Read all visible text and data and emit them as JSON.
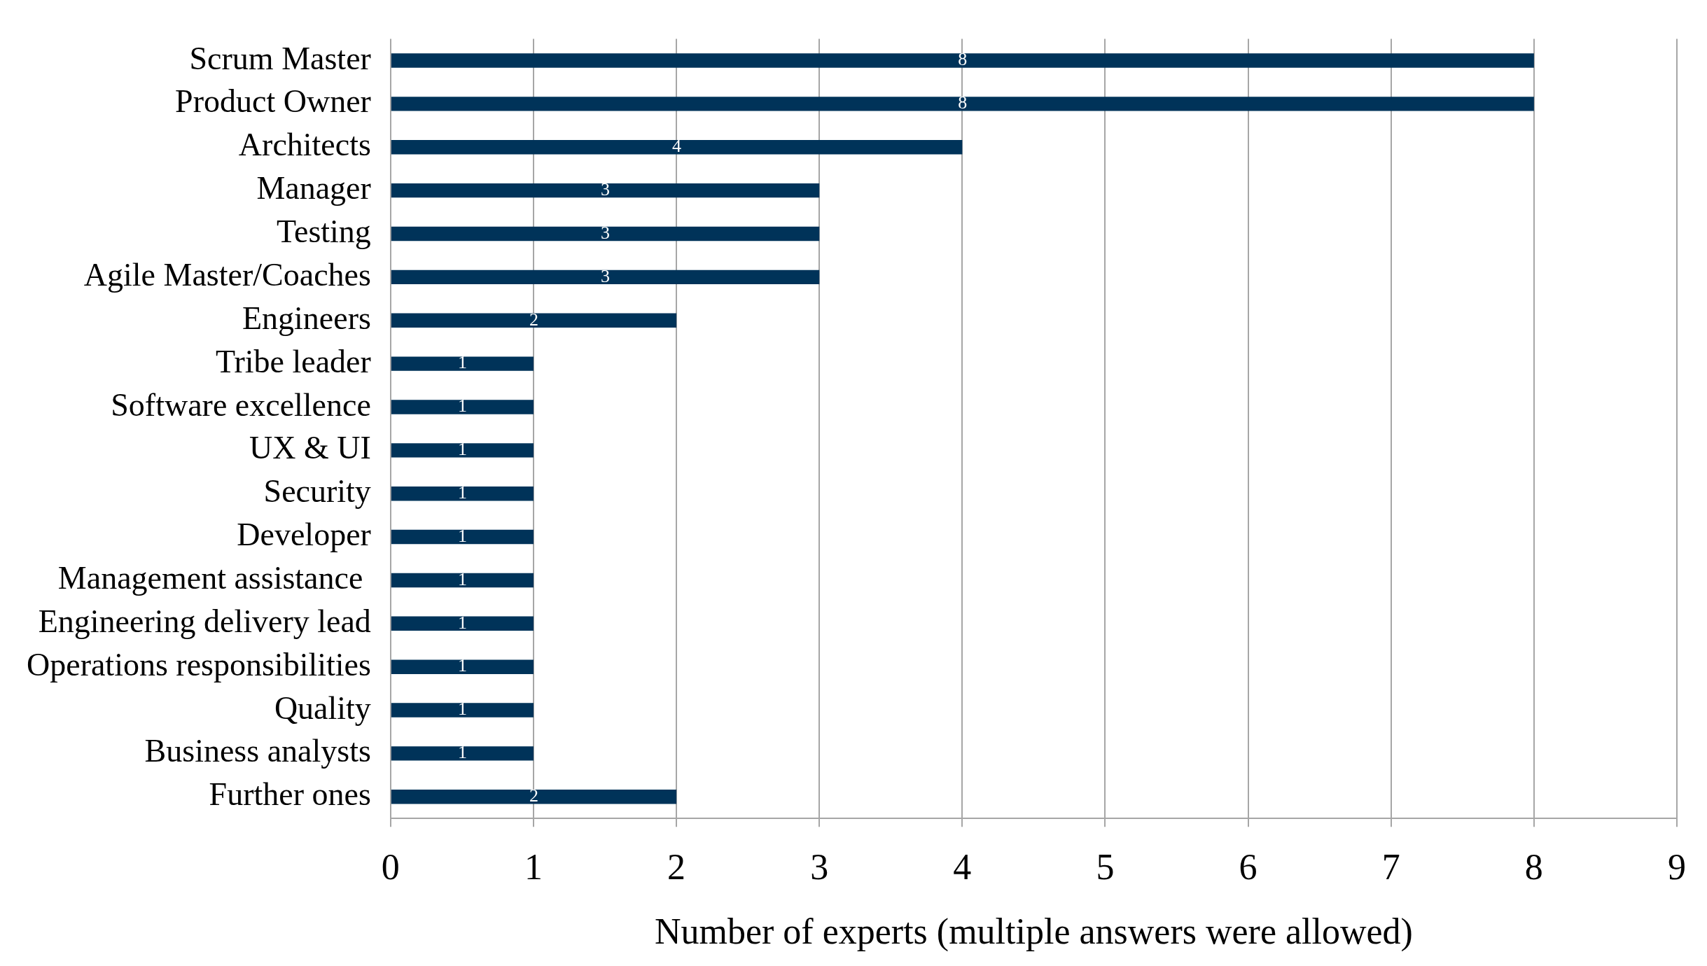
{
  "chart_data": {
    "type": "bar",
    "orientation": "horizontal",
    "xlabel": "Number of experts (multiple answers were allowed)",
    "categories": [
      "Scrum Master",
      "Product Owner",
      "Architects",
      "Manager",
      "Testing",
      "Agile Master/Coaches",
      "Engineers",
      "Tribe leader",
      "Software excellence",
      "UX & UI",
      "Security",
      "Developer",
      "Management assistance ",
      "Engineering delivery lead",
      "Operations responsibilities",
      "Quality",
      "Business analysts",
      "Further ones"
    ],
    "values": [
      8,
      8,
      4,
      3,
      3,
      3,
      2,
      1,
      1,
      1,
      1,
      1,
      1,
      1,
      1,
      1,
      1,
      2
    ],
    "color": "#003359",
    "xlim": [
      0,
      9
    ],
    "xticks": [
      0,
      1,
      2,
      3,
      4,
      5,
      6,
      7,
      8,
      9
    ],
    "grid": "x",
    "data_labels": true
  }
}
